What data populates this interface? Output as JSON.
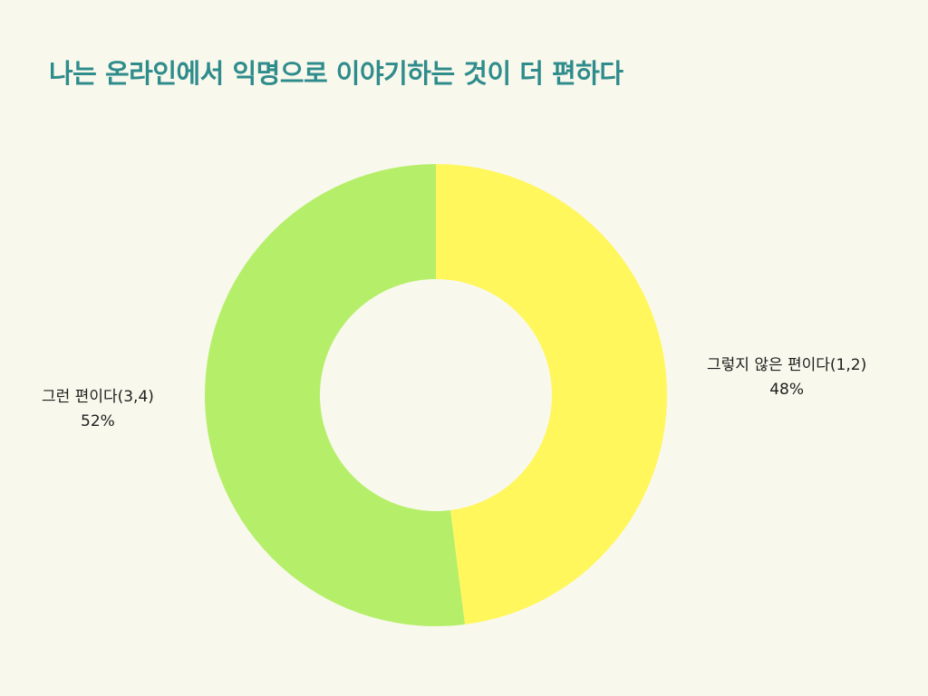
{
  "chart_data": {
    "type": "pie",
    "title": "나는 온라인에서 익명으로 이야기하는 것이 더 편하다",
    "donut": true,
    "legend": "none",
    "slices": [
      {
        "label": "그렇지 않은 편이다(1,2)",
        "value": 48,
        "value_label": "48%",
        "color": "#fff75c"
      },
      {
        "label": "그런 편이다(3,4)",
        "value": 52,
        "value_label": "52%",
        "color": "#b5ef6a"
      }
    ]
  },
  "colors": {
    "background": "#f9f8ec",
    "title": "#2f8c8c"
  }
}
